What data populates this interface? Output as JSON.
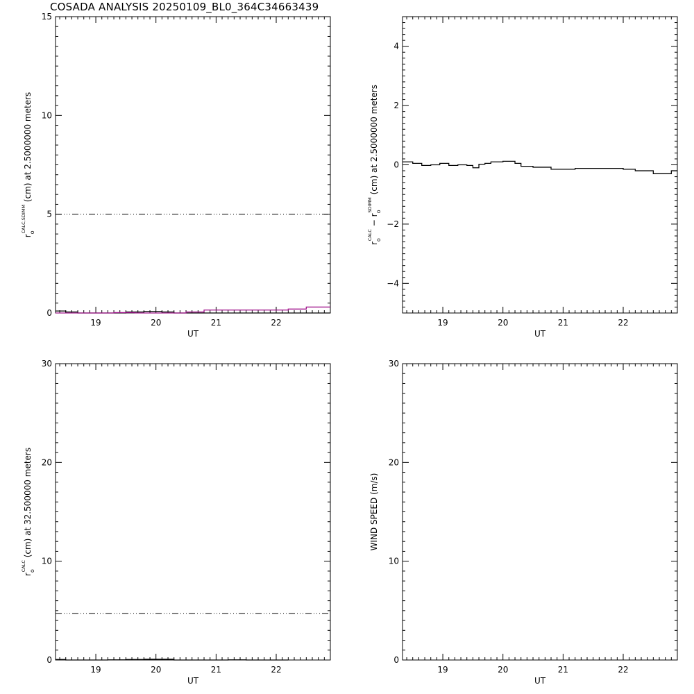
{
  "title": "COSADA ANALYSIS  20250109_BL0_364C34663439",
  "chart_data": [
    {
      "type": "line",
      "panel": "top-left",
      "xlabel": "UT",
      "ylabel_parts": [
        "r",
        "o",
        "CALC,SDIMM",
        " (cm)  at  2.5000000 meters"
      ],
      "xlim": [
        18.33,
        22.9
      ],
      "ylim": [
        0,
        15
      ],
      "xticks": [
        19,
        20,
        21,
        22
      ],
      "yticks": [
        0,
        5,
        10,
        15
      ],
      "ytick_labels": [
        "0",
        "5",
        "10",
        "15"
      ],
      "reference_line": {
        "y": 5,
        "style": "dash-dot",
        "color": "#000000"
      },
      "series": [
        {
          "color": "#000000",
          "step": true,
          "x": [
            18.33,
            18.5,
            18.7,
            18.85,
            19.0,
            19.15,
            19.3,
            19.5,
            19.65,
            19.8,
            19.95,
            20.1,
            20.3,
            20.5,
            20.8,
            21.0,
            21.2,
            21.5,
            21.8,
            22.0,
            22.2,
            22.5,
            22.9
          ],
          "y": [
            0.1,
            0.05,
            0.0,
            0.0,
            0.0,
            0.0,
            0.0,
            0.05,
            0.05,
            0.08,
            0.08,
            0.05,
            0.0,
            0.0,
            0.0,
            -0.05,
            -0.05,
            -0.05,
            -0.05,
            -0.05,
            -0.05,
            -0.05,
            -0.05
          ]
        },
        {
          "color": "#a0148c",
          "step": true,
          "x": [
            18.33,
            18.5,
            18.7,
            18.85,
            19.0,
            19.15,
            19.3,
            19.5,
            19.65,
            19.8,
            19.95,
            20.1,
            20.3,
            20.5,
            20.8,
            21.0,
            21.2,
            21.5,
            21.8,
            22.0,
            22.2,
            22.5,
            22.9
          ],
          "y": [
            0.0,
            0.0,
            0.0,
            0.0,
            0.0,
            0.0,
            0.02,
            0.02,
            0.0,
            0.0,
            0.0,
            0.0,
            0.0,
            0.05,
            0.15,
            0.15,
            0.15,
            0.15,
            0.15,
            0.15,
            0.2,
            0.3,
            0.3
          ]
        }
      ]
    },
    {
      "type": "line",
      "panel": "top-right",
      "xlabel": "UT",
      "ylabel_parts": [
        "r",
        "o",
        "CALC",
        "  −  ",
        "r",
        "o",
        "SDIMM",
        " (cm)  at  2.5000000 meters"
      ],
      "xlim": [
        18.33,
        22.9
      ],
      "ylim": [
        -5,
        5
      ],
      "xticks": [
        19,
        20,
        21,
        22
      ],
      "yticks": [
        -4,
        -2,
        0,
        2,
        4
      ],
      "ytick_labels": [
        "−4",
        "−2",
        "0",
        "2",
        "4"
      ],
      "series": [
        {
          "color": "#000000",
          "step": true,
          "x": [
            18.33,
            18.5,
            18.65,
            18.8,
            18.95,
            19.1,
            19.25,
            19.4,
            19.5,
            19.6,
            19.7,
            19.8,
            19.9,
            20.0,
            20.2,
            20.3,
            20.5,
            20.8,
            21.0,
            21.2,
            21.5,
            22.0,
            22.2,
            22.5,
            22.8,
            22.9
          ],
          "y": [
            0.1,
            0.05,
            -0.02,
            0.0,
            0.05,
            -0.02,
            0.0,
            -0.02,
            -0.1,
            0.02,
            0.05,
            0.1,
            0.1,
            0.12,
            0.05,
            -0.05,
            -0.08,
            -0.15,
            -0.15,
            -0.12,
            -0.12,
            -0.15,
            -0.2,
            -0.3,
            -0.2,
            -0.2
          ]
        }
      ]
    },
    {
      "type": "line",
      "panel": "bottom-left",
      "xlabel": "UT",
      "ylabel_parts": [
        "r",
        "o",
        "CALC",
        " (cm)  at  32.500000 meters"
      ],
      "xlim": [
        18.33,
        22.9
      ],
      "ylim": [
        0,
        30
      ],
      "xticks": [
        19,
        20,
        21,
        22
      ],
      "yticks": [
        0,
        10,
        20,
        30
      ],
      "ytick_labels": [
        "0",
        "10",
        "20",
        "30"
      ],
      "reference_line": {
        "y": 4.7,
        "style": "dash-dot",
        "color": "#000000"
      },
      "series": [
        {
          "color": "#000000",
          "step": true,
          "x": [
            18.33,
            18.5,
            18.7,
            19.0,
            19.2,
            19.5,
            19.8,
            20.0,
            20.3,
            20.5,
            21.0,
            21.2,
            21.5,
            22.0,
            22.2
          ],
          "y": [
            0.05,
            0.0,
            0.0,
            0.0,
            0.02,
            0.05,
            0.08,
            0.08,
            0.0,
            0.0,
            0.0,
            0.02,
            0.0,
            0.0,
            0.0
          ]
        }
      ]
    },
    {
      "type": "line",
      "panel": "bottom-right",
      "xlabel": "UT",
      "ylabel_parts": [
        "WIND SPEED (m/s)"
      ],
      "xlim": [
        18.33,
        22.9
      ],
      "ylim": [
        0,
        30
      ],
      "xticks": [
        19,
        20,
        21,
        22
      ],
      "yticks": [
        0,
        10,
        20,
        30
      ],
      "ytick_labels": [
        "0",
        "10",
        "20",
        "30"
      ],
      "series": []
    }
  ]
}
